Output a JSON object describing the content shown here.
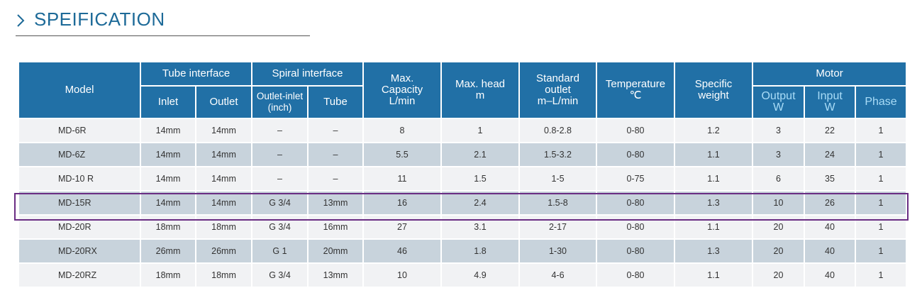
{
  "title": "SPEIFICATION",
  "table": {
    "header": {
      "model": "Model",
      "tube_interface": {
        "label": "Tube interface",
        "inlet": "Inlet",
        "outlet": "Outlet"
      },
      "spiral_interface": {
        "label": "Spiral interface",
        "outlet_inlet": [
          "Outlet-inlet",
          "(inch)"
        ],
        "tube": "Tube"
      },
      "capacity": [
        "Max.",
        "Capacity",
        "L/min"
      ],
      "head": [
        "Max. head",
        "m"
      ],
      "standard_outlet": [
        "Standard",
        "outlet",
        "m–L/min"
      ],
      "temperature": [
        "Temperature",
        "℃"
      ],
      "specific_weight": [
        "Specific",
        "weight"
      ],
      "motor": {
        "label": "Motor",
        "output": [
          "Output",
          "W"
        ],
        "input": [
          "Input",
          "W"
        ],
        "phase": "Phase"
      }
    },
    "rows": [
      [
        "MD-6R",
        "14mm",
        "14mm",
        "–",
        "–",
        "8",
        "1",
        "0.8-2.8",
        "0-80",
        "1.2",
        "3",
        "22",
        "1"
      ],
      [
        "MD-6Z",
        "14mm",
        "14mm",
        "–",
        "–",
        "5.5",
        "2.1",
        "1.5-3.2",
        "0-80",
        "1.1",
        "3",
        "24",
        "1"
      ],
      [
        "MD-10 R",
        "14mm",
        "14mm",
        "–",
        "–",
        "11",
        "1.5",
        "1-5",
        "0-75",
        "1.1",
        "6",
        "35",
        "1"
      ],
      [
        "MD-15R",
        "14mm",
        "14mm",
        "G 3/4",
        "13mm",
        "16",
        "2.4",
        "1.5-8",
        "0-80",
        "1.3",
        "10",
        "26",
        "1"
      ],
      [
        "MD-20R",
        "18mm",
        "18mm",
        "G 3/4",
        "16mm",
        "27",
        "3.1",
        "2-17",
        "0-80",
        "1.1",
        "20",
        "40",
        "1"
      ],
      [
        "MD-20RX",
        "26mm",
        "26mm",
        "G 1",
        "20mm",
        "46",
        "1.8",
        "1-30",
        "0-80",
        "1.3",
        "20",
        "40",
        "1"
      ],
      [
        "MD-20RZ",
        "18mm",
        "18mm",
        "G 3/4",
        "13mm",
        "10",
        "4.9",
        "4-6",
        "0-80",
        "1.1",
        "20",
        "40",
        "1"
      ]
    ]
  }
}
